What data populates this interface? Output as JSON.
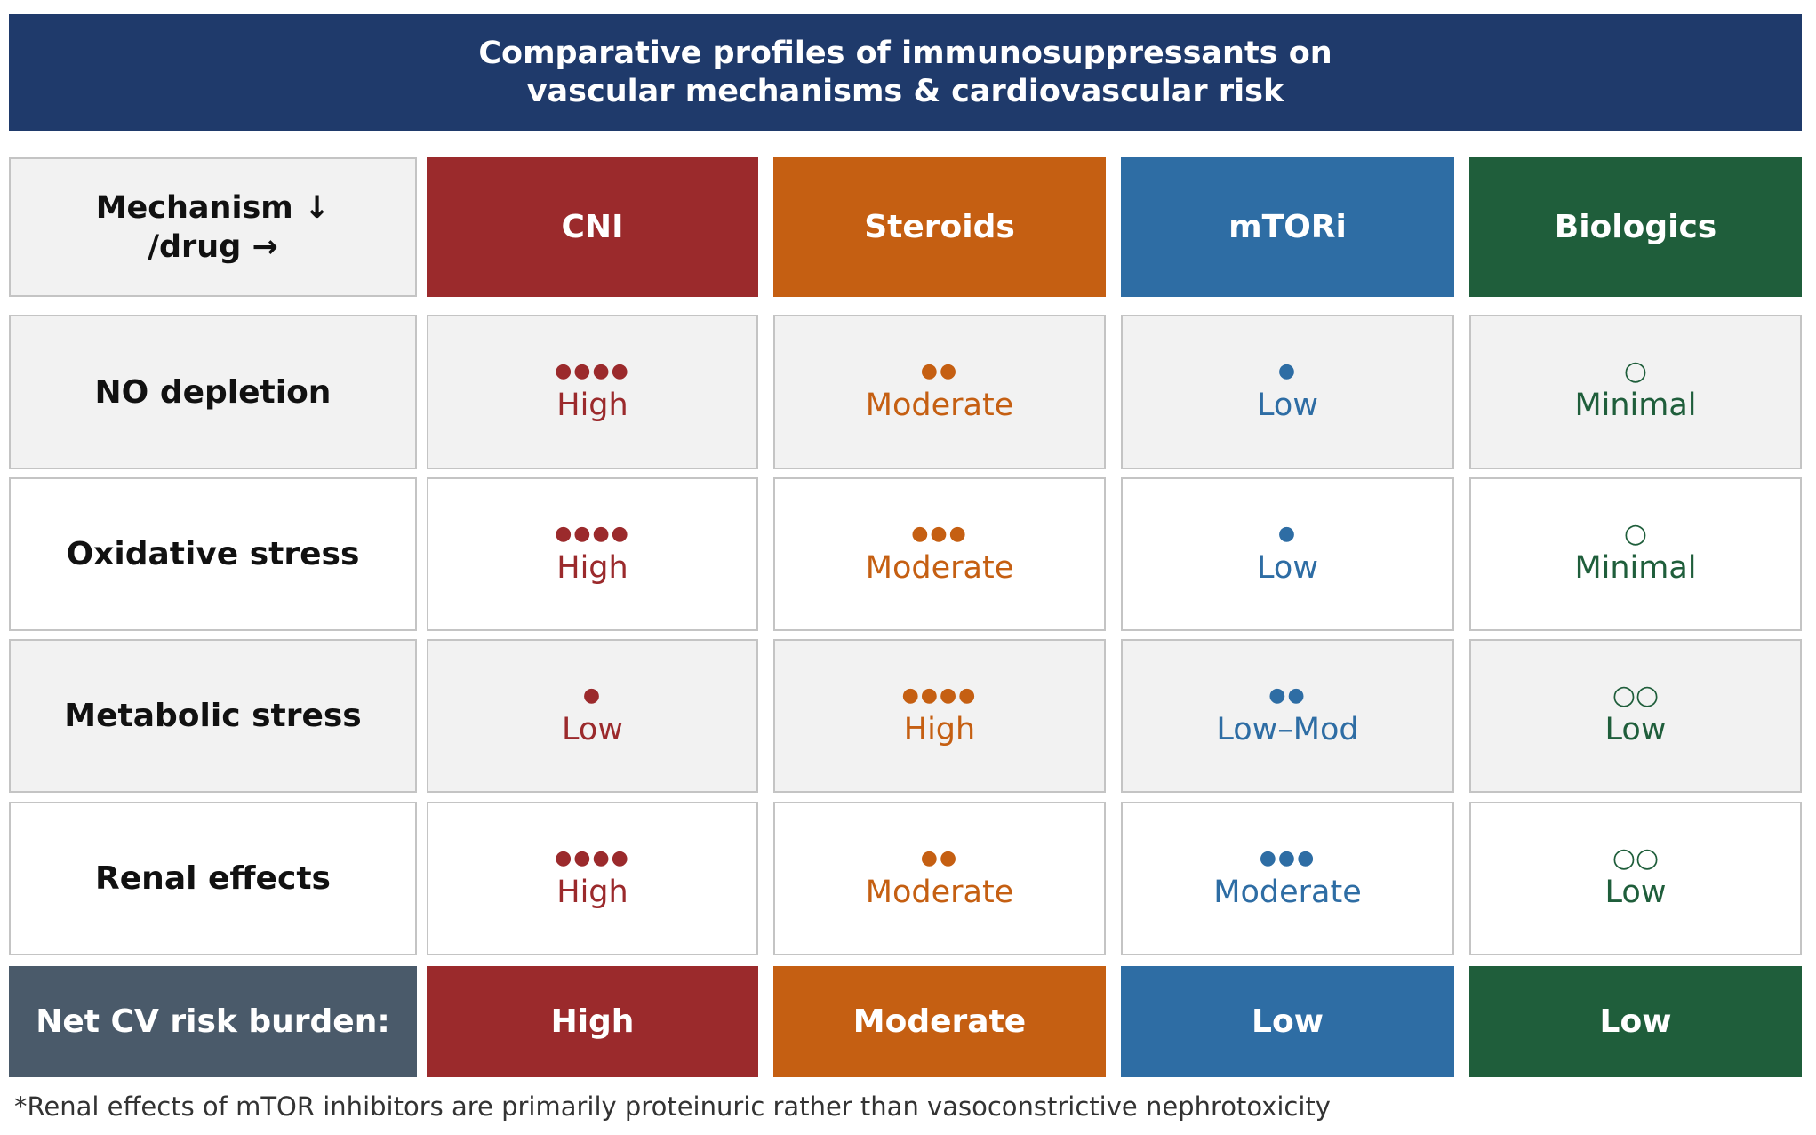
{
  "header": {
    "title_lines": [
      "Comparative profiles of immunosuppressants on",
      "vascular mechanisms & cardiovascular risk"
    ]
  },
  "table": {
    "corner": [
      "Mechanism ↓",
      "/drug →"
    ],
    "columns": [
      {
        "name": "CNI",
        "color": "#9b2a2c"
      },
      {
        "name": "Steroids",
        "color": "#c55f12"
      },
      {
        "name": "mTORi",
        "color": "#2e6da4"
      },
      {
        "name": "Biologics",
        "color": "#1f5e3b"
      }
    ],
    "rows": [
      {
        "label": "NO depletion",
        "cells": [
          {
            "symbol": "●●●●",
            "level": "High"
          },
          {
            "symbol": "●●",
            "level": "Moderate"
          },
          {
            "symbol": "●",
            "level": "Low"
          },
          {
            "symbol": "○",
            "level": "Minimal"
          }
        ]
      },
      {
        "label": "Oxidative stress",
        "cells": [
          {
            "symbol": "●●●●",
            "level": "High"
          },
          {
            "symbol": "●●●",
            "level": "Moderate"
          },
          {
            "symbol": "●",
            "level": "Low"
          },
          {
            "symbol": "○",
            "level": "Minimal"
          }
        ]
      },
      {
        "label": "Metabolic stress",
        "cells": [
          {
            "symbol": "●",
            "level": "Low"
          },
          {
            "symbol": "●●●●",
            "level": "High"
          },
          {
            "symbol": "●●",
            "level": "Low–Mod"
          },
          {
            "symbol": "○○",
            "level": "Low"
          }
        ]
      },
      {
        "label": "Renal effects",
        "cells": [
          {
            "symbol": "●●●●",
            "level": "High"
          },
          {
            "symbol": "●●",
            "level": "Moderate"
          },
          {
            "symbol": "●●●",
            "level": "Moderate"
          },
          {
            "symbol": "○○",
            "level": "Low"
          }
        ]
      }
    ],
    "footer": {
      "label": "Net CV risk burden:",
      "label_color": "#4a5a6a",
      "values": [
        "High",
        "Moderate",
        "Low",
        "Low"
      ]
    }
  },
  "footnote": "*Renal effects of mTOR inhibitors are primarily proteinuric rather than vasoconstrictive nephrotoxicity"
}
